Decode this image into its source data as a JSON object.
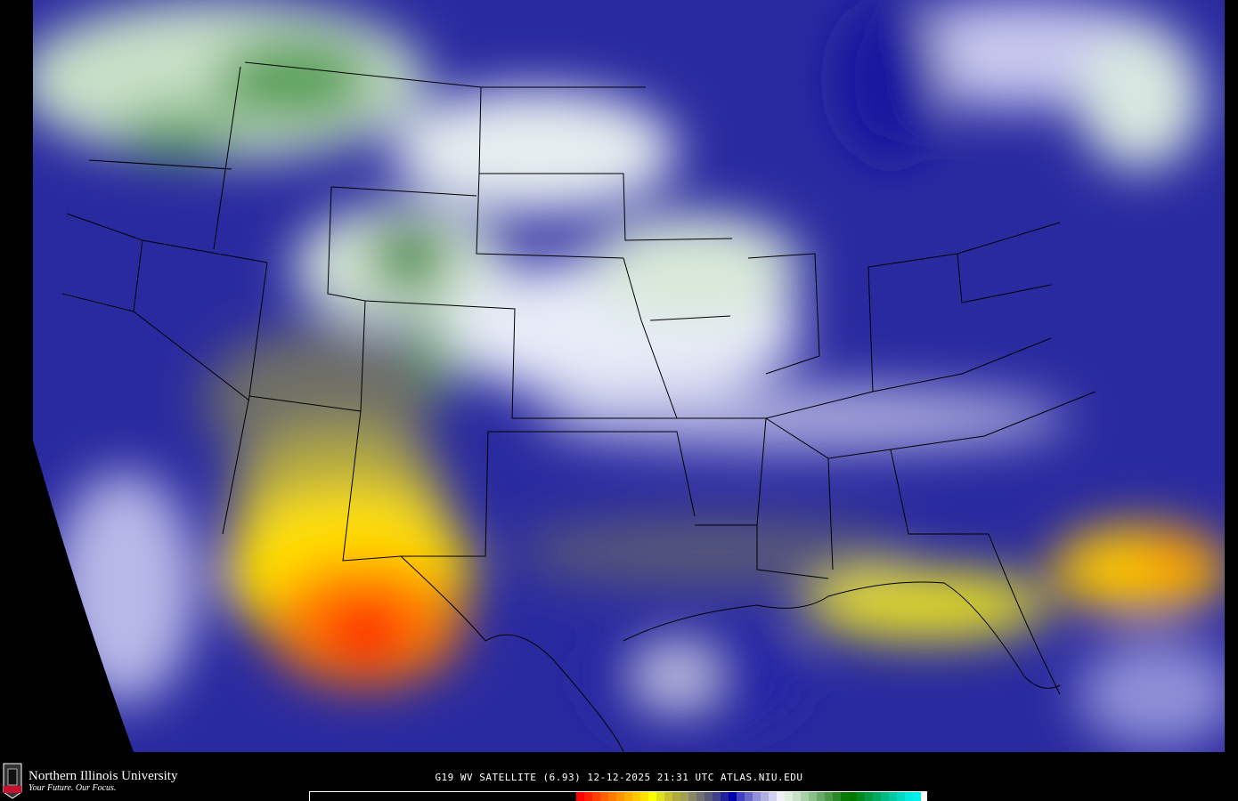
{
  "logo": {
    "university": "Northern Illinois University",
    "tagline": "Your Future. Our Focus.",
    "mark": "NIU"
  },
  "caption": "G19 WV SATELLITE (6.93) 12-12-2025 21:31 UTC   ATLAS.NIU.EDU",
  "colors": {
    "background": "#000000",
    "colorbar": [
      "#ff0000",
      "#ff2000",
      "#ff4000",
      "#ff6000",
      "#ff7a00",
      "#ff9400",
      "#ffae00",
      "#ffc800",
      "#ffe000",
      "#ffff00",
      "#e0e020",
      "#c8c030",
      "#b0a840",
      "#a0a050",
      "#888868",
      "#707070",
      "#585878",
      "#404088",
      "#202098",
      "#0000a8",
      "#4040c0",
      "#6868c8",
      "#9090d8",
      "#b0b0e0",
      "#d0d0f0",
      "#f0f0f8",
      "#e0eee0",
      "#c8e0c8",
      "#a8d0a8",
      "#88c088",
      "#68a868",
      "#489848",
      "#288828",
      "#087808",
      "#007800",
      "#008820",
      "#009840",
      "#00a860",
      "#00b880",
      "#00c8a0",
      "#00d8c0",
      "#00e8e0",
      "#00f0f0"
    ]
  }
}
